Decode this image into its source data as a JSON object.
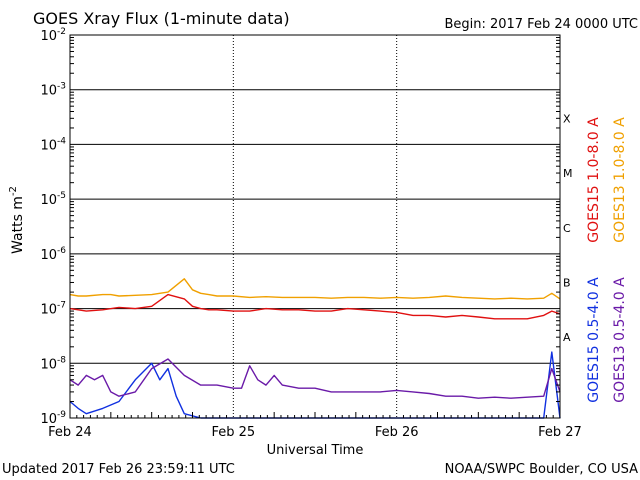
{
  "chart_data": {
    "type": "line",
    "title": "GOES Xray Flux (1-minute data)",
    "begin_label": "Begin:  2017 Feb 24 0000 UTC",
    "ylabel": "Watts m",
    "ylabel_sup": "-2",
    "xlabel": "Universal Time",
    "yscale": "log",
    "ylim": [
      1e-09,
      0.01
    ],
    "xlim": [
      0,
      3
    ],
    "grid": true,
    "y_ticks": [
      {
        "value": 0.01,
        "base": "10",
        "exp": "-2"
      },
      {
        "value": 0.001,
        "base": "10",
        "exp": "-3"
      },
      {
        "value": 0.0001,
        "base": "10",
        "exp": "-4"
      },
      {
        "value": 1e-05,
        "base": "10",
        "exp": "-5"
      },
      {
        "value": 1e-06,
        "base": "10",
        "exp": "-6"
      },
      {
        "value": 1e-07,
        "base": "10",
        "exp": "-7"
      },
      {
        "value": 1e-08,
        "base": "10",
        "exp": "-8"
      },
      {
        "value": 1e-09,
        "base": "10",
        "exp": "-9"
      }
    ],
    "x_ticks": [
      {
        "value": 0,
        "label": "Feb 24"
      },
      {
        "value": 1,
        "label": "Feb 25"
      },
      {
        "value": 2,
        "label": "Feb 26"
      },
      {
        "value": 3,
        "label": "Feb 27"
      }
    ],
    "flare_classes": [
      {
        "label": "X",
        "value": 0.0003
      },
      {
        "label": "M",
        "value": 3e-05
      },
      {
        "label": "C",
        "value": 3e-06
      },
      {
        "label": "B",
        "value": 3e-07
      },
      {
        "label": "A",
        "value": 3e-08
      }
    ],
    "series": [
      {
        "name": "GOES15 1.0-8.0 A",
        "color": "#e01010",
        "x": [
          0,
          0.05,
          0.1,
          0.2,
          0.3,
          0.4,
          0.5,
          0.6,
          0.7,
          0.75,
          0.8,
          0.85,
          0.9,
          1.0,
          1.1,
          1.2,
          1.3,
          1.4,
          1.5,
          1.6,
          1.7,
          1.8,
          1.9,
          2.0,
          2.1,
          2.2,
          2.3,
          2.4,
          2.5,
          2.6,
          2.7,
          2.8,
          2.9,
          2.95,
          3.0
        ],
        "values": [
          1e-07,
          9.5e-08,
          9e-08,
          9.5e-08,
          1.05e-07,
          1e-07,
          1.1e-07,
          1.8e-07,
          1.5e-07,
          1.1e-07,
          1e-07,
          9.5e-08,
          9.5e-08,
          9e-08,
          9e-08,
          1e-07,
          9.5e-08,
          9.5e-08,
          9e-08,
          9e-08,
          1e-07,
          9.5e-08,
          9e-08,
          8.5e-08,
          7.5e-08,
          7.5e-08,
          7e-08,
          7.5e-08,
          7e-08,
          6.5e-08,
          6.5e-08,
          6.5e-08,
          7.5e-08,
          9e-08,
          8e-08
        ]
      },
      {
        "name": "GOES13 1.0-8.0 A",
        "color": "#f0a000",
        "x": [
          0,
          0.05,
          0.1,
          0.2,
          0.25,
          0.3,
          0.4,
          0.5,
          0.6,
          0.7,
          0.75,
          0.8,
          0.85,
          0.9,
          1.0,
          1.1,
          1.2,
          1.3,
          1.4,
          1.5,
          1.6,
          1.7,
          1.8,
          1.9,
          2.0,
          2.1,
          2.2,
          2.3,
          2.4,
          2.5,
          2.6,
          2.7,
          2.8,
          2.9,
          2.95,
          3.0
        ],
        "values": [
          1.8e-07,
          1.7e-07,
          1.7e-07,
          1.8e-07,
          1.8e-07,
          1.7e-07,
          1.75e-07,
          1.8e-07,
          2e-07,
          3.5e-07,
          2.2e-07,
          1.9e-07,
          1.8e-07,
          1.7e-07,
          1.7e-07,
          1.6e-07,
          1.65e-07,
          1.6e-07,
          1.6e-07,
          1.6e-07,
          1.55e-07,
          1.6e-07,
          1.6e-07,
          1.55e-07,
          1.6e-07,
          1.55e-07,
          1.6e-07,
          1.7e-07,
          1.6e-07,
          1.55e-07,
          1.5e-07,
          1.55e-07,
          1.5e-07,
          1.55e-07,
          1.9e-07,
          1.5e-07
        ]
      },
      {
        "name": "GOES15 0.5-4.0 A",
        "color": "#1030e0",
        "x": [
          0,
          0.05,
          0.1,
          0.2,
          0.3,
          0.4,
          0.5,
          0.55,
          0.6,
          0.65,
          0.7,
          0.8,
          0.9,
          1.0,
          1.1,
          1.2,
          1.3,
          1.4,
          1.5,
          1.6,
          1.7,
          1.8,
          1.9,
          2.0,
          2.1,
          2.2,
          2.3,
          2.4,
          2.5,
          2.6,
          2.7,
          2.8,
          2.9,
          2.95,
          3.0
        ],
        "values": [
          2e-09,
          1.5e-09,
          1.2e-09,
          1.5e-09,
          2e-09,
          5e-09,
          1e-08,
          5e-09,
          8e-09,
          2.5e-09,
          1.2e-09,
          1e-09,
          1e-09,
          1e-09,
          1e-09,
          1e-09,
          1e-09,
          1e-09,
          1e-09,
          1e-09,
          1e-09,
          1e-09,
          1e-09,
          1e-09,
          1e-09,
          1e-09,
          1e-09,
          1e-09,
          1e-09,
          1e-09,
          1e-09,
          1e-09,
          1e-09,
          1.6e-08,
          1e-09
        ]
      },
      {
        "name": "GOES13 0.5-4.0 A",
        "color": "#6a1aa8",
        "x": [
          0,
          0.05,
          0.1,
          0.15,
          0.2,
          0.25,
          0.3,
          0.4,
          0.5,
          0.6,
          0.7,
          0.8,
          0.9,
          1.0,
          1.05,
          1.1,
          1.15,
          1.2,
          1.25,
          1.3,
          1.4,
          1.5,
          1.6,
          1.7,
          1.8,
          1.9,
          2.0,
          2.1,
          2.2,
          2.3,
          2.4,
          2.5,
          2.6,
          2.7,
          2.8,
          2.9,
          2.95,
          3.0
        ],
        "values": [
          5e-09,
          4e-09,
          6e-09,
          5e-09,
          6e-09,
          3e-09,
          2.5e-09,
          3e-09,
          8e-09,
          1.2e-08,
          6e-09,
          4e-09,
          4e-09,
          3.5e-09,
          3.5e-09,
          9e-09,
          5e-09,
          4e-09,
          6e-09,
          4e-09,
          3.5e-09,
          3.5e-09,
          3e-09,
          3e-09,
          3e-09,
          3e-09,
          3.2e-09,
          3e-09,
          2.8e-09,
          2.5e-09,
          2.5e-09,
          2.3e-09,
          2.4e-09,
          2.3e-09,
          2.4e-09,
          2.5e-09,
          8e-09,
          3e-09
        ]
      }
    ]
  },
  "footer": {
    "updated": "Updated 2017 Feb 26 23:59:11 UTC",
    "source": "NOAA/SWPC Boulder, CO USA"
  }
}
